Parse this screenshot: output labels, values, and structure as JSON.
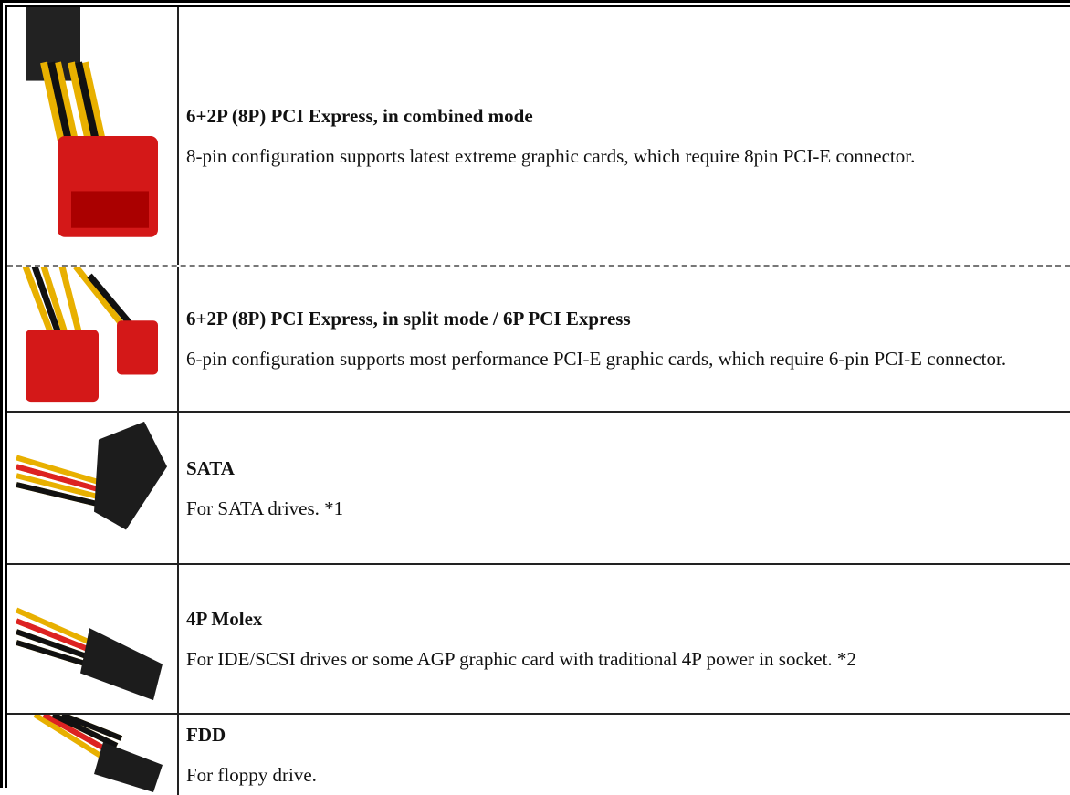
{
  "rows": [
    {
      "title": "6+2P (8P) PCI Express, in combined mode",
      "description": "8-pin configuration supports latest extreme graphic cards, which require 8pin PCI-E connector."
    },
    {
      "title": "6+2P (8P) PCI Express, in split mode / 6P PCI Express",
      "description": "6-pin configuration supports most performance PCI-E graphic cards, which require 6-pin PCI-E connector."
    },
    {
      "title": "SATA",
      "description": "For SATA drives. *1"
    },
    {
      "title": "4P Molex",
      "description": "For IDE/SCSI drives or some AGP graphic card with traditional 4P power in socket. *2"
    },
    {
      "title": "FDD",
      "description": "For floppy drive."
    }
  ]
}
